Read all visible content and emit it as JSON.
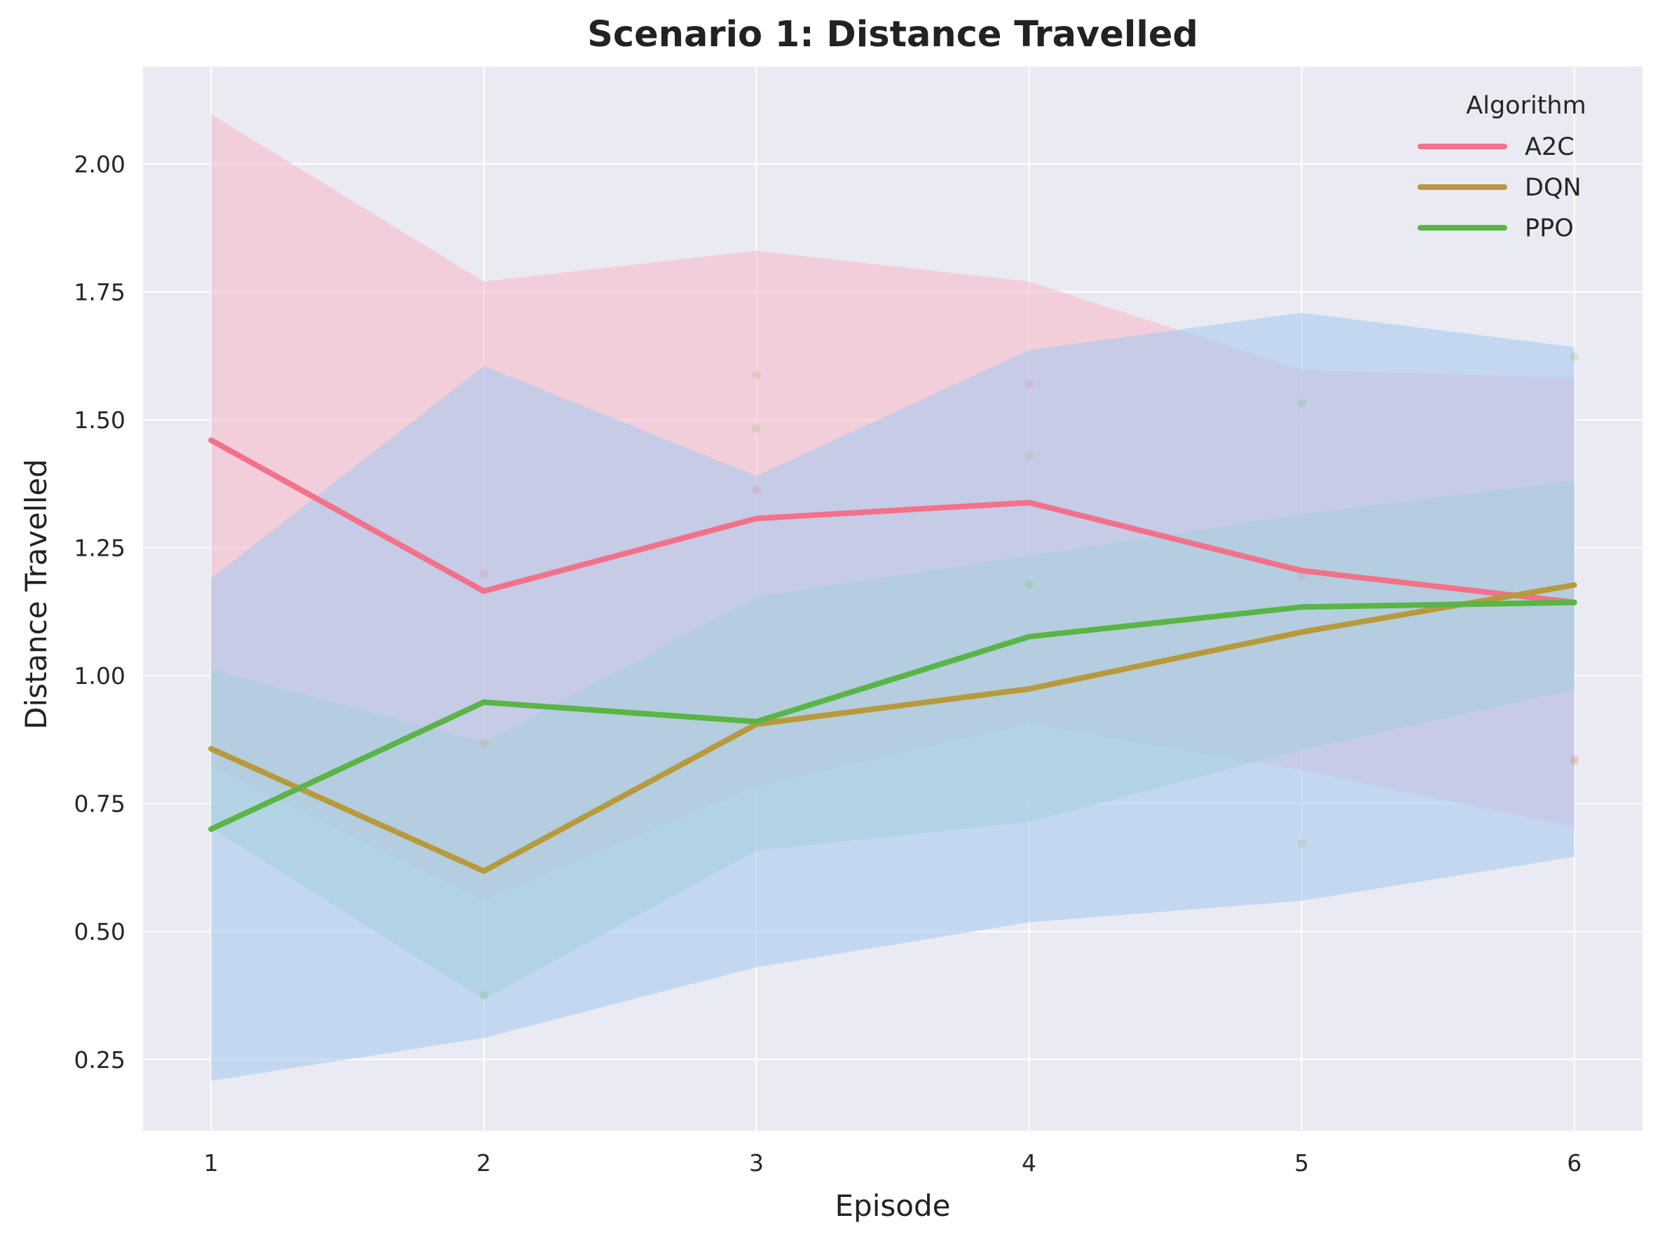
{
  "chart_data": {
    "type": "line",
    "title": "Scenario 1: Distance Travelled",
    "xlabel": "Episode",
    "ylabel": "Distance Travelled",
    "x": [
      1,
      2,
      3,
      4,
      5,
      6
    ],
    "xlim": [
      0.75,
      6.25
    ],
    "ylim": [
      0.11,
      2.19
    ],
    "yticks": [
      "0.25",
      "0.50",
      "0.75",
      "1.00",
      "1.25",
      "1.50",
      "1.75",
      "2.00"
    ],
    "xticks": [
      "1",
      "2",
      "3",
      "4",
      "5",
      "6"
    ],
    "grid": true,
    "background": "#eaeaf2",
    "legend": {
      "title": "Algorithm",
      "placement": "top-right"
    },
    "series": [
      {
        "name": "A2C",
        "color": "#f37189",
        "band_color": "#f7b6c8",
        "values": [
          1.46,
          1.165,
          1.307,
          1.338,
          1.205,
          1.143
        ],
        "upper": [
          2.097,
          1.77,
          1.83,
          1.77,
          1.597,
          1.582
        ],
        "lower": [
          0.822,
          0.56,
          0.784,
          0.906,
          0.815,
          0.704
        ],
        "points": [
          1.198,
          1.363,
          1.57,
          1.195,
          0.836
        ]
      },
      {
        "name": "DQN",
        "color": "#b89a3c",
        "band_color": "#a8d8c0",
        "values": [
          0.857,
          0.618,
          0.905,
          0.974,
          1.085,
          1.177
        ],
        "upper": [
          1.012,
          0.869,
          1.154,
          1.234,
          1.315,
          1.381
        ],
        "lower": [
          0.702,
          0.367,
          0.658,
          0.714,
          0.855,
          0.973
        ],
        "points": [
          0.868,
          1.588,
          1.43,
          0.672,
          0.833
        ]
      },
      {
        "name": "PPO",
        "color": "#5ab546",
        "band_color": "#a3c8ee",
        "values": [
          0.7,
          0.948,
          0.91,
          1.076,
          1.134,
          1.143
        ],
        "upper": [
          1.19,
          1.605,
          1.39,
          1.636,
          1.709,
          1.642
        ],
        "lower": [
          0.208,
          0.292,
          0.43,
          0.518,
          0.56,
          0.646
        ],
        "points": [
          0.375,
          1.483,
          1.178,
          1.532,
          1.623
        ]
      }
    ]
  }
}
